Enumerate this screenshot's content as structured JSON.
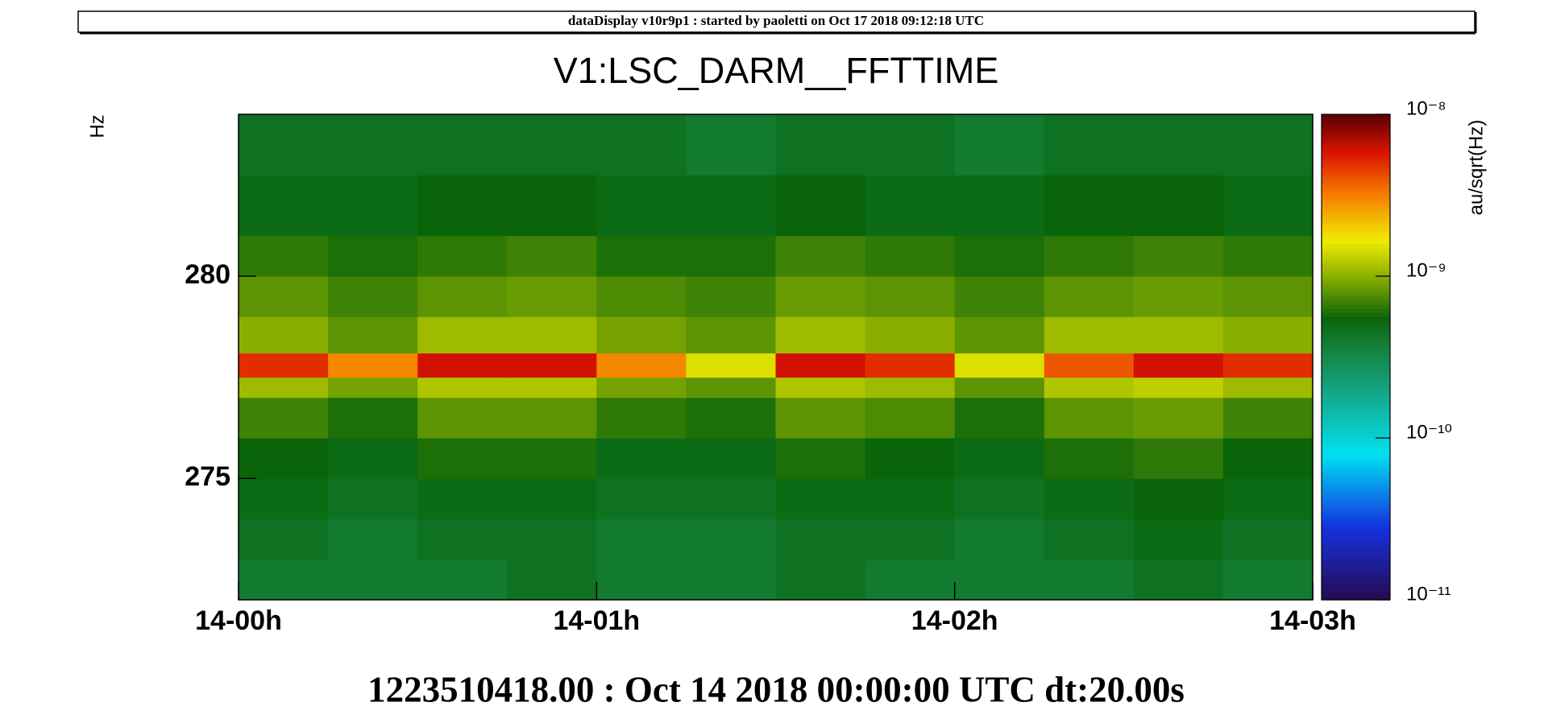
{
  "chart_data": {
    "type": "heatmap",
    "header": "dataDisplay v10r9p1 : started by paoletti on Oct 17 2018 09:12:18 UTC",
    "title": "V1:LSC_DARM__FFTTIME",
    "xlabel": "1223510418.00 : Oct 14 2018 00:00:00 UTC dt:20.00s",
    "ylabel": "Hz",
    "colorbar_label": "au/sqrt(Hz)",
    "x": [
      0,
      0.25,
      0.5,
      0.75,
      1,
      1.25,
      1.5,
      1.75,
      2,
      2.25,
      2.5,
      2.75,
      3
    ],
    "y": [
      272,
      273,
      274,
      275,
      276,
      277,
      277.5,
      278.1,
      279,
      280,
      281,
      282.5,
      284
    ],
    "values": [
      [
        4e-10,
        4e-10,
        4e-10,
        4.5e-10,
        4e-10,
        4e-10,
        4.5e-10,
        4e-10,
        4e-10,
        4e-10,
        4.5e-10,
        4e-10
      ],
      [
        4.5e-10,
        4e-10,
        4.5e-10,
        4.5e-10,
        4e-10,
        4e-10,
        4.5e-10,
        4.5e-10,
        4e-10,
        4.5e-10,
        5e-10,
        4.5e-10
      ],
      [
        5e-10,
        4.5e-10,
        5e-10,
        5e-10,
        4.5e-10,
        4.5e-10,
        5e-10,
        5e-10,
        4.5e-10,
        5e-10,
        5.5e-10,
        5e-10
      ],
      [
        5.5e-10,
        5e-10,
        6e-10,
        6e-10,
        5e-10,
        5e-10,
        6e-10,
        5.5e-10,
        5e-10,
        6e-10,
        6.5e-10,
        5.5e-10
      ],
      [
        7e-10,
        6e-10,
        8e-10,
        8e-10,
        6.5e-10,
        6e-10,
        8e-10,
        7.5e-10,
        6e-10,
        8e-10,
        8.5e-10,
        7e-10
      ],
      [
        1.1e-09,
        9e-10,
        1.2e-09,
        1.2e-09,
        9e-10,
        8e-10,
        1.2e-09,
        1.1e-09,
        8e-10,
        1.2e-09,
        1.3e-09,
        1.1e-09
      ],
      [
        5e-09,
        3e-09,
        6e-09,
        6e-09,
        3e-09,
        1.5e-09,
        6e-09,
        5e-09,
        1.5e-09,
        4e-09,
        6e-09,
        5e-09
      ],
      [
        1e-09,
        8e-10,
        1.1e-09,
        1.1e-09,
        9e-10,
        8e-10,
        1.1e-09,
        1e-09,
        8e-10,
        1.1e-09,
        1.1e-09,
        1e-09
      ],
      [
        8e-10,
        7e-10,
        8e-10,
        8.5e-10,
        7.5e-10,
        7e-10,
        8.5e-10,
        8e-10,
        7e-10,
        8e-10,
        8.5e-10,
        8e-10
      ],
      [
        6.5e-10,
        6e-10,
        6.5e-10,
        7e-10,
        6e-10,
        6e-10,
        7e-10,
        6.5e-10,
        6e-10,
        6.5e-10,
        7e-10,
        6.5e-10
      ],
      [
        5e-10,
        5e-10,
        5.5e-10,
        5.5e-10,
        5e-10,
        5e-10,
        5.5e-10,
        5e-10,
        5e-10,
        5.5e-10,
        5.5e-10,
        5e-10
      ],
      [
        4.5e-10,
        4.5e-10,
        4.5e-10,
        4.5e-10,
        4.5e-10,
        4e-10,
        4.5e-10,
        4.5e-10,
        4e-10,
        4.5e-10,
        4.5e-10,
        4.5e-10
      ]
    ],
    "xlim": [
      0,
      3
    ],
    "xticks": [
      {
        "value": 0,
        "label": "14-00h"
      },
      {
        "value": 1,
        "label": "14-01h"
      },
      {
        "value": 2,
        "label": "14-02h"
      },
      {
        "value": 3,
        "label": "14-03h"
      }
    ],
    "ylim": [
      272,
      284
    ],
    "yticks": [
      275,
      280
    ],
    "clim": [
      1e-11,
      1e-08
    ],
    "cticks": [
      {
        "value": 1e-11,
        "label": "10⁻¹¹"
      },
      {
        "value": 1e-10,
        "label": "10⁻¹⁰"
      },
      {
        "value": 1e-09,
        "label": "10⁻⁹"
      },
      {
        "value": 1e-08,
        "label": "10⁻⁸"
      }
    ],
    "color_log": true
  }
}
